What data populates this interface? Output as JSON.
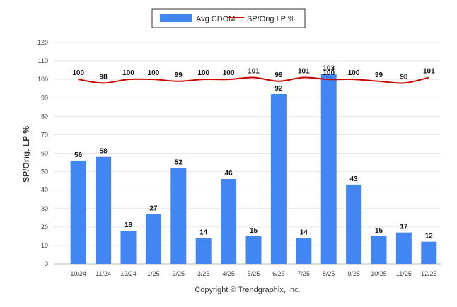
{
  "chart_data": {
    "type": "bar",
    "categories": [
      "10/24",
      "11/24",
      "12/24",
      "1/25",
      "2/25",
      "3/25",
      "4/25",
      "5/25",
      "6/25",
      "7/25",
      "8/25",
      "9/25",
      "10/25",
      "11/25",
      "12/25"
    ],
    "series": [
      {
        "name": "Avg CDOM",
        "type": "bar",
        "color": "#4286f4",
        "values": [
          56,
          58,
          18,
          27,
          52,
          14,
          46,
          15,
          92,
          14,
          103,
          43,
          15,
          17,
          12
        ]
      },
      {
        "name": "SP/Orig LP %",
        "type": "line",
        "color": "#cc0000",
        "values": [
          100,
          98,
          100,
          100,
          99,
          100,
          100,
          101,
          99,
          101,
          100,
          100,
          99,
          98,
          101
        ]
      }
    ],
    "ylabel": "SP/Orig. LP %",
    "ylim": [
      0,
      120
    ],
    "yticks": [
      0,
      10,
      20,
      30,
      40,
      50,
      60,
      70,
      80,
      90,
      100,
      110,
      120
    ],
    "grid": true,
    "legend_position": "top-center",
    "credit": "Copyright © Trendgraphix, Inc."
  }
}
